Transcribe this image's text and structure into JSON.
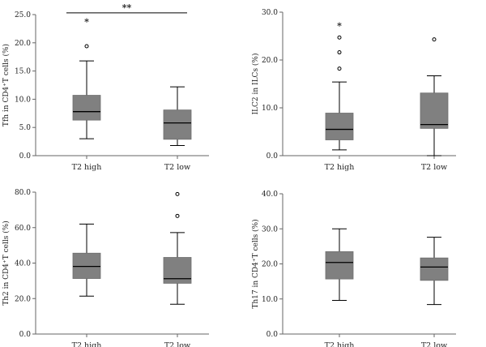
{
  "chart_data": [
    {
      "type": "box",
      "ylabel": "Tfh in CD4⁺T cells (%)",
      "ylim": [
        0,
        25
      ],
      "yticks": [
        0.0,
        5.0,
        10.0,
        15.0,
        20.0,
        25.0
      ],
      "ytick_labels": [
        "0.0",
        "5.0",
        "10.0",
        "15.0",
        "20.0",
        "25.0"
      ],
      "categories": [
        "T2 high",
        "T2 low"
      ],
      "boxes": [
        {
          "category": "T2 high",
          "whisker_low": 3.0,
          "q1": 6.3,
          "median": 7.8,
          "q3": 10.7,
          "whisker_high": 16.8,
          "outliers": [
            {
              "value": 19.4,
              "marker": "circle"
            },
            {
              "value": 23.8,
              "marker": "star"
            }
          ]
        },
        {
          "category": "T2 low",
          "whisker_low": 1.8,
          "q1": 2.9,
          "median": 5.8,
          "q3": 8.1,
          "whisker_high": 12.2,
          "outliers": []
        }
      ],
      "significance": {
        "from": "T2 high",
        "to": "T2 low",
        "y": 25.3,
        "label": "**"
      }
    },
    {
      "type": "box",
      "ylabel": "ILC2 in ILCs (%)",
      "ylim": [
        0,
        30
      ],
      "yticks": [
        0.0,
        10.0,
        20.0,
        30.0
      ],
      "ytick_labels": [
        "0.0",
        "10.0",
        "20.0",
        "30.0"
      ],
      "categories": [
        "T2 high",
        "T2 low"
      ],
      "boxes": [
        {
          "category": "T2 high",
          "whisker_low": 1.2,
          "q1": 3.3,
          "median": 5.5,
          "q3": 8.9,
          "whisker_high": 15.4,
          "outliers": [
            {
              "value": 18.2,
              "marker": "circle"
            },
            {
              "value": 21.6,
              "marker": "circle"
            },
            {
              "value": 24.7,
              "marker": "circle"
            },
            {
              "value": 27.2,
              "marker": "star"
            }
          ]
        },
        {
          "category": "T2 low",
          "whisker_low": 0.0,
          "q1": 5.7,
          "median": 6.5,
          "q3": 13.1,
          "whisker_high": 16.7,
          "outliers": [
            {
              "value": 24.3,
              "marker": "circle"
            }
          ]
        }
      ],
      "significance": null
    },
    {
      "type": "box",
      "ylabel": "Th2 in CD4⁺T cells (%)",
      "ylim": [
        0,
        80
      ],
      "yticks": [
        0.0,
        20.0,
        40.0,
        60.0,
        80.0
      ],
      "ytick_labels": [
        "0.0",
        "20.0",
        "40.0",
        "60.0",
        "80.0"
      ],
      "categories": [
        "T2 high",
        "T2 low"
      ],
      "boxes": [
        {
          "category": "T2 high",
          "whisker_low": 21.4,
          "q1": 31.3,
          "median": 38.1,
          "q3": 45.6,
          "whisker_high": 62.0,
          "outliers": []
        },
        {
          "category": "T2 low",
          "whisker_low": 16.8,
          "q1": 28.6,
          "median": 31.2,
          "q3": 43.2,
          "whisker_high": 57.2,
          "outliers": [
            {
              "value": 66.6,
              "marker": "circle"
            },
            {
              "value": 78.9,
              "marker": "circle"
            }
          ]
        }
      ],
      "significance": null
    },
    {
      "type": "box",
      "ylabel": "Th17 in CD4⁺T cells (%)",
      "ylim": [
        0,
        40
      ],
      "yticks": [
        0.0,
        10.0,
        20.0,
        30.0,
        40.0
      ],
      "ytick_labels": [
        "0.0",
        "10.0",
        "20.0",
        "30.0",
        "40.0"
      ],
      "categories": [
        "T2 high",
        "T2 low"
      ],
      "boxes": [
        {
          "category": "T2 high",
          "whisker_low": 9.6,
          "q1": 15.7,
          "median": 20.4,
          "q3": 23.5,
          "whisker_high": 30.0,
          "outliers": []
        },
        {
          "category": "T2 low",
          "whisker_low": 8.4,
          "q1": 15.3,
          "median": 19.1,
          "q3": 21.7,
          "whisker_high": 27.6,
          "outliers": []
        }
      ],
      "significance": null
    }
  ],
  "style": {
    "box_fill": "#808080",
    "line_color": "#000000",
    "axis_color": "#666666",
    "background": "#ffffff"
  }
}
